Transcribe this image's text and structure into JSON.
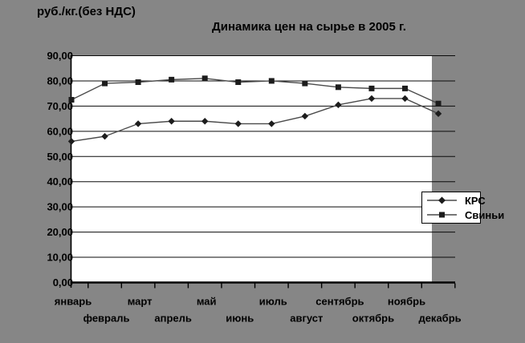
{
  "chart_data": {
    "type": "line",
    "title": "Динамика цен на сырье в 2005 г.",
    "ylabel": "руб./кг.(без НДС)",
    "categories": [
      "январь",
      "февраль",
      "март",
      "апрель",
      "май",
      "июнь",
      "июль",
      "август",
      "сентябрь",
      "октябрь",
      "ноябрь",
      "декабрь"
    ],
    "y_tick_labels": [
      "0,00",
      "10,00",
      "20,00",
      "30,00",
      "40,00",
      "50,00",
      "60,00",
      "70,00",
      "80,00",
      "90,00"
    ],
    "ylim": [
      0,
      90
    ],
    "y_step": 10,
    "grid": true,
    "legend_position": "middle-right",
    "colors": {
      "background": "#868686",
      "plot_background": "#ffffff",
      "gridline": "#0a0a0a",
      "axis": "#000000",
      "series_line": "#4a4a4a",
      "marker": "#1c1c1c",
      "text": "#000000"
    },
    "series": [
      {
        "name": "КРС",
        "marker": "diamond",
        "values": [
          56,
          58,
          63,
          64,
          64,
          63,
          63,
          66,
          70.5,
          73,
          73,
          67
        ]
      },
      {
        "name": "Свиньи",
        "marker": "square",
        "values": [
          72.5,
          79,
          79.5,
          80.5,
          81,
          79.5,
          80,
          79,
          77.5,
          77,
          77,
          71
        ]
      }
    ]
  }
}
